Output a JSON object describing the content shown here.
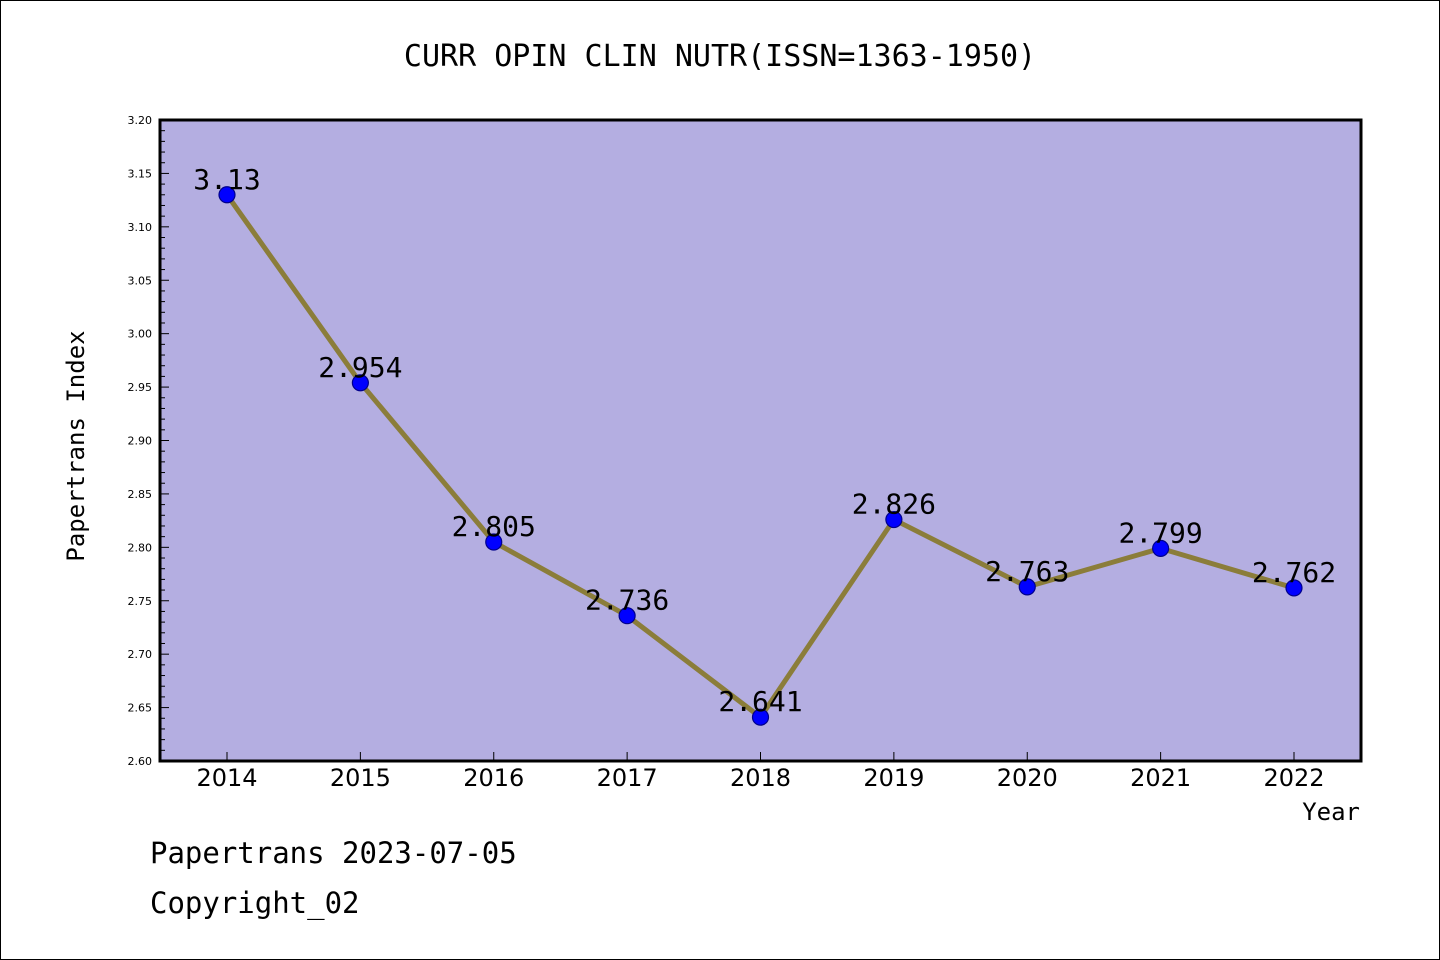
{
  "chart_data": {
    "type": "line",
    "title": "CURR OPIN CLIN NUTR(ISSN=1363-1950)",
    "xlabel": "Year",
    "ylabel": "Papertrans Index",
    "categories": [
      "2014",
      "2015",
      "2016",
      "2017",
      "2018",
      "2019",
      "2020",
      "2021",
      "2022"
    ],
    "series": [
      {
        "values": [
          3.13,
          2.954,
          2.805,
          2.736,
          2.641,
          2.826,
          2.763,
          2.799,
          2.762
        ],
        "data_labels": [
          "3.13",
          "2.954",
          "2.805",
          "2.736",
          "2.641",
          "2.826",
          "2.763",
          "2.799",
          "2.762"
        ]
      }
    ],
    "ylim": [
      2.6,
      3.2
    ],
    "ytick_labels": [
      "2.60",
      "2.65",
      "2.70",
      "2.75",
      "2.80",
      "2.85",
      "2.90",
      "2.95",
      "3.00",
      "3.05",
      "3.10",
      "3.15",
      "3.20"
    ],
    "grid": false,
    "legend": "none",
    "colors": {
      "plot_background": "#b4aee1",
      "line": "#8b7d3a",
      "marker": "#0000ff",
      "marker_edge": "#00008b"
    }
  },
  "footer": {
    "line1": "Papertrans 2023-07-05",
    "line2": "Copyright_02"
  }
}
